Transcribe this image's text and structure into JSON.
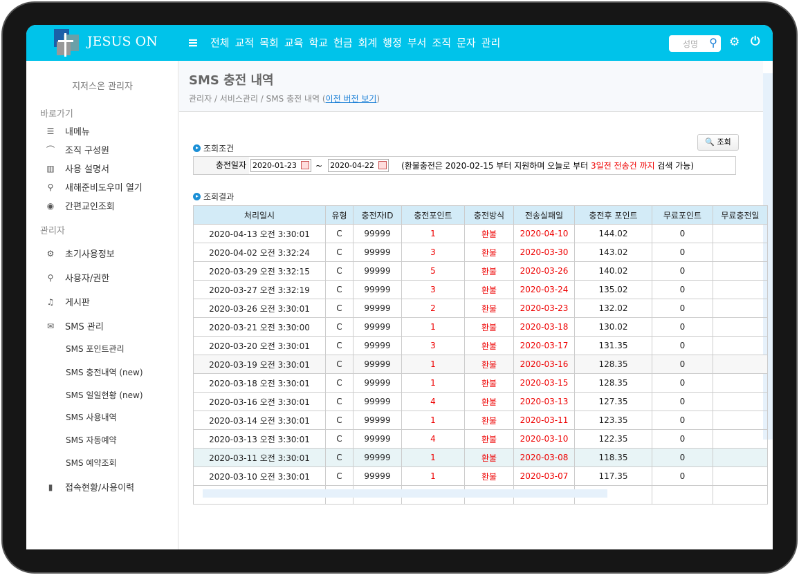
{
  "header": {
    "brand": "JESUS ON",
    "nav": [
      "전체",
      "교적",
      "목회",
      "교육",
      "학교",
      "헌금",
      "회계",
      "행정",
      "부서",
      "조직",
      "문자",
      "관리"
    ],
    "search_placeholder": "성명"
  },
  "sidebar": {
    "user": "지저스온 관리자",
    "section1": "바로가기",
    "quick": [
      {
        "icon": "list-icon",
        "label": "내메뉴"
      },
      {
        "icon": "org-icon",
        "label": "조직 구성원"
      },
      {
        "icon": "book-icon",
        "label": "사용 설명서"
      },
      {
        "icon": "key-icon",
        "label": "새해준비도우미 열기"
      },
      {
        "icon": "eye-icon",
        "label": "간편교인조회"
      }
    ],
    "section2": "관리자",
    "admin": [
      {
        "icon": "gear-icon",
        "label": "초기사용정보"
      },
      {
        "icon": "key-icon",
        "label": "사용자/권한"
      },
      {
        "icon": "bell-icon",
        "label": "게시판"
      },
      {
        "icon": "mail-icon",
        "label": "SMS 관리"
      }
    ],
    "sms_sub": [
      "SMS 포인트관리",
      "SMS 충전내역 (new)",
      "SMS 일일현황 (new)",
      "SMS 사용내역",
      "SMS 자동예약",
      "SMS 예약조회"
    ],
    "last": {
      "icon": "chart-icon",
      "label": "접속현황/사용이력"
    }
  },
  "page": {
    "title": "SMS 충전 내역",
    "crumb": "관리자 / 서비스관리 / SMS 충전 내역 (",
    "crumb_link": "이전 버전 보기",
    "crumb_end": ")"
  },
  "search": {
    "section": "조회조건",
    "button": "조회",
    "label": "충전일자",
    "from": "2020-01-23",
    "to": "2020-04-22",
    "tilde": "~",
    "note1": "(환불충전은 2020-02-15 부터 지원하며 오늘로 부터 ",
    "note_red": "3일전 전송건 까지",
    "note2": " 검색 가능)"
  },
  "results": {
    "section": "조회결과",
    "columns": [
      "처리일시",
      "유형",
      "충전자ID",
      "충전포인트",
      "충전방식",
      "전송실패일",
      "충전후 포인트",
      "무료포인트",
      "무료충전일"
    ],
    "rows": [
      [
        "2020-04-13 오전 3:30:01",
        "C",
        "99999",
        "1",
        "환불",
        "2020-04-10",
        "144.02",
        "0",
        ""
      ],
      [
        "2020-04-02 오전 3:32:24",
        "C",
        "99999",
        "3",
        "환불",
        "2020-03-30",
        "143.02",
        "0",
        ""
      ],
      [
        "2020-03-29 오전 3:32:15",
        "C",
        "99999",
        "5",
        "환불",
        "2020-03-26",
        "140.02",
        "0",
        ""
      ],
      [
        "2020-03-27 오전 3:32:19",
        "C",
        "99999",
        "3",
        "환불",
        "2020-03-24",
        "135.02",
        "0",
        ""
      ],
      [
        "2020-03-26 오전 3:30:01",
        "C",
        "99999",
        "2",
        "환불",
        "2020-03-23",
        "132.02",
        "0",
        ""
      ],
      [
        "2020-03-21 오전 3:30:00",
        "C",
        "99999",
        "1",
        "환불",
        "2020-03-18",
        "130.02",
        "0",
        ""
      ],
      [
        "2020-03-20 오전 3:30:01",
        "C",
        "99999",
        "3",
        "환불",
        "2020-03-17",
        "131.35",
        "0",
        ""
      ],
      [
        "2020-03-19 오전 3:30:01",
        "C",
        "99999",
        "1",
        "환불",
        "2020-03-16",
        "128.35",
        "0",
        ""
      ],
      [
        "2020-03-18 오전 3:30:01",
        "C",
        "99999",
        "1",
        "환불",
        "2020-03-15",
        "128.35",
        "0",
        ""
      ],
      [
        "2020-03-16 오전 3:30:01",
        "C",
        "99999",
        "4",
        "환불",
        "2020-03-13",
        "127.35",
        "0",
        ""
      ],
      [
        "2020-03-14 오전 3:30:01",
        "C",
        "99999",
        "1",
        "환불",
        "2020-03-11",
        "123.35",
        "0",
        ""
      ],
      [
        "2020-03-13 오전 3:30:01",
        "C",
        "99999",
        "4",
        "환불",
        "2020-03-10",
        "122.35",
        "0",
        ""
      ],
      [
        "2020-03-11 오전 3:30:01",
        "C",
        "99999",
        "1",
        "환불",
        "2020-03-08",
        "118.35",
        "0",
        ""
      ],
      [
        "2020-03-10 오전 3:30:01",
        "C",
        "99999",
        "1",
        "환불",
        "2020-03-07",
        "117.35",
        "0",
        ""
      ],
      [
        "",
        "",
        "",
        "",
        "",
        "",
        "",
        "",
        ""
      ]
    ]
  },
  "colors": {
    "header": "#00c3ea",
    "red": "#ee0000",
    "table_header": "#d3ebf7"
  }
}
